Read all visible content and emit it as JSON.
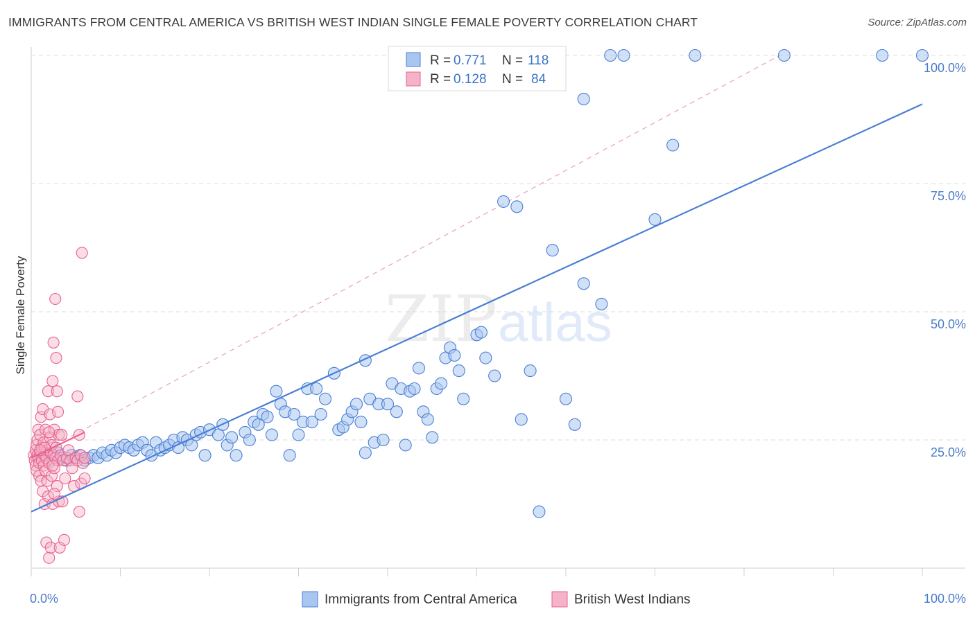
{
  "title": "IMMIGRANTS FROM CENTRAL AMERICA VS BRITISH WEST INDIAN SINGLE FEMALE POVERTY CORRELATION CHART",
  "source": "Source: ZipAtlas.com",
  "watermark": {
    "zip": "ZIP",
    "atlas": "atlas"
  },
  "colors": {
    "blue": "#4a7fd4",
    "blue_fill": "#a9c6f0",
    "pink": "#e8628e",
    "pink_fill": "#f4b3c8",
    "grid": "#dcdcdc",
    "tick": "#4a7cc9"
  },
  "legend": {
    "r_label": "R =",
    "n_label": "N =",
    "entries": [
      {
        "r": "0.771",
        "n": "118"
      },
      {
        "r": "0.128",
        "n": "84"
      }
    ]
  },
  "bottom_legend": [
    "Immigrants from Central America",
    "British West Indians"
  ],
  "chart_data": {
    "type": "scatter",
    "ylabel": "Single Female Poverty",
    "xlim": [
      0,
      1
    ],
    "ylim": [
      0,
      1
    ],
    "x_tick_labels": [
      "0.0%",
      "100.0%"
    ],
    "y_tick_labels": [
      "25.0%",
      "50.0%",
      "75.0%",
      "100.0%"
    ],
    "y_ticks": [
      0.25,
      0.5,
      0.75,
      1.0
    ],
    "grid": true,
    "series": [
      {
        "name": "Immigrants from Central America",
        "color": "#4a7fd4",
        "trend": {
          "x0": 0.0,
          "y0": 0.11,
          "x1": 1.0,
          "y1": 0.905
        },
        "points": [
          [
            0.01,
            0.22
          ],
          [
            0.015,
            0.215
          ],
          [
            0.02,
            0.21
          ],
          [
            0.025,
            0.22
          ],
          [
            0.03,
            0.225
          ],
          [
            0.035,
            0.215
          ],
          [
            0.04,
            0.21
          ],
          [
            0.045,
            0.22
          ],
          [
            0.05,
            0.215
          ],
          [
            0.055,
            0.22
          ],
          [
            0.06,
            0.21
          ],
          [
            0.065,
            0.215
          ],
          [
            0.07,
            0.22
          ],
          [
            0.075,
            0.215
          ],
          [
            0.08,
            0.225
          ],
          [
            0.085,
            0.22
          ],
          [
            0.09,
            0.23
          ],
          [
            0.095,
            0.225
          ],
          [
            0.1,
            0.235
          ],
          [
            0.105,
            0.24
          ],
          [
            0.11,
            0.235
          ],
          [
            0.115,
            0.23
          ],
          [
            0.12,
            0.24
          ],
          [
            0.125,
            0.245
          ],
          [
            0.13,
            0.23
          ],
          [
            0.135,
            0.22
          ],
          [
            0.14,
            0.245
          ],
          [
            0.145,
            0.23
          ],
          [
            0.15,
            0.235
          ],
          [
            0.155,
            0.24
          ],
          [
            0.16,
            0.25
          ],
          [
            0.165,
            0.235
          ],
          [
            0.17,
            0.255
          ],
          [
            0.175,
            0.25
          ],
          [
            0.18,
            0.24
          ],
          [
            0.185,
            0.26
          ],
          [
            0.19,
            0.265
          ],
          [
            0.195,
            0.22
          ],
          [
            0.2,
            0.27
          ],
          [
            0.21,
            0.26
          ],
          [
            0.215,
            0.28
          ],
          [
            0.22,
            0.24
          ],
          [
            0.225,
            0.255
          ],
          [
            0.23,
            0.22
          ],
          [
            0.24,
            0.265
          ],
          [
            0.245,
            0.25
          ],
          [
            0.25,
            0.285
          ],
          [
            0.255,
            0.28
          ],
          [
            0.26,
            0.3
          ],
          [
            0.265,
            0.295
          ],
          [
            0.27,
            0.26
          ],
          [
            0.275,
            0.345
          ],
          [
            0.28,
            0.32
          ],
          [
            0.285,
            0.305
          ],
          [
            0.29,
            0.22
          ],
          [
            0.295,
            0.3
          ],
          [
            0.3,
            0.26
          ],
          [
            0.305,
            0.285
          ],
          [
            0.31,
            0.35
          ],
          [
            0.315,
            0.285
          ],
          [
            0.32,
            0.35
          ],
          [
            0.325,
            0.3
          ],
          [
            0.33,
            0.33
          ],
          [
            0.34,
            0.38
          ],
          [
            0.345,
            0.27
          ],
          [
            0.35,
            0.275
          ],
          [
            0.355,
            0.29
          ],
          [
            0.36,
            0.305
          ],
          [
            0.365,
            0.32
          ],
          [
            0.37,
            0.285
          ],
          [
            0.375,
            0.405
          ],
          [
            0.38,
            0.33
          ],
          [
            0.385,
            0.245
          ],
          [
            0.39,
            0.32
          ],
          [
            0.395,
            0.25
          ],
          [
            0.4,
            0.32
          ],
          [
            0.405,
            0.36
          ],
          [
            0.41,
            0.305
          ],
          [
            0.415,
            0.35
          ],
          [
            0.42,
            0.24
          ],
          [
            0.425,
            0.345
          ],
          [
            0.43,
            0.35
          ],
          [
            0.435,
            0.39
          ],
          [
            0.44,
            0.305
          ],
          [
            0.445,
            0.29
          ],
          [
            0.45,
            0.255
          ],
          [
            0.455,
            0.35
          ],
          [
            0.46,
            0.36
          ],
          [
            0.465,
            0.41
          ],
          [
            0.47,
            0.43
          ],
          [
            0.475,
            0.415
          ],
          [
            0.48,
            0.385
          ],
          [
            0.485,
            0.33
          ],
          [
            0.5,
            0.455
          ],
          [
            0.505,
            0.46
          ],
          [
            0.51,
            0.41
          ],
          [
            0.52,
            0.375
          ],
          [
            0.53,
            0.715
          ],
          [
            0.545,
            0.705
          ],
          [
            0.55,
            0.29
          ],
          [
            0.56,
            0.385
          ],
          [
            0.57,
            0.11
          ],
          [
            0.58,
            1.0
          ],
          [
            0.585,
            0.62
          ],
          [
            0.6,
            0.33
          ],
          [
            0.61,
            0.28
          ],
          [
            0.62,
            0.555
          ],
          [
            0.62,
            0.915
          ],
          [
            0.64,
            0.515
          ],
          [
            0.65,
            1.0
          ],
          [
            0.665,
            1.0
          ],
          [
            0.7,
            0.68
          ],
          [
            0.72,
            0.825
          ],
          [
            0.745,
            1.0
          ],
          [
            0.845,
            1.0
          ],
          [
            0.955,
            1.0
          ],
          [
            1.0,
            1.0
          ],
          [
            0.375,
            0.225
          ]
        ]
      },
      {
        "name": "British West Indians",
        "color": "#e8628e",
        "trend": {
          "x0": 0.0,
          "y0": 0.215,
          "x1": 0.06,
          "y1": 0.265
        },
        "dash": {
          "x0": 0.0,
          "y0": 0.215,
          "x1": 0.84,
          "y1": 1.0
        },
        "points": [
          [
            0.003,
            0.22
          ],
          [
            0.004,
            0.21
          ],
          [
            0.005,
            0.23
          ],
          [
            0.005,
            0.2
          ],
          [
            0.006,
            0.24
          ],
          [
            0.006,
            0.19
          ],
          [
            0.007,
            0.25
          ],
          [
            0.007,
            0.22
          ],
          [
            0.008,
            0.215
          ],
          [
            0.008,
            0.27
          ],
          [
            0.009,
            0.18
          ],
          [
            0.009,
            0.205
          ],
          [
            0.01,
            0.26
          ],
          [
            0.01,
            0.225
          ],
          [
            0.011,
            0.295
          ],
          [
            0.011,
            0.17
          ],
          [
            0.012,
            0.21
          ],
          [
            0.012,
            0.235
          ],
          [
            0.013,
            0.31
          ],
          [
            0.013,
            0.15
          ],
          [
            0.014,
            0.2
          ],
          [
            0.014,
            0.245
          ],
          [
            0.015,
            0.125
          ],
          [
            0.015,
            0.22
          ],
          [
            0.016,
            0.27
          ],
          [
            0.016,
            0.19
          ],
          [
            0.017,
            0.215
          ],
          [
            0.017,
            0.05
          ],
          [
            0.018,
            0.23
          ],
          [
            0.018,
            0.17
          ],
          [
            0.019,
            0.345
          ],
          [
            0.019,
            0.14
          ],
          [
            0.02,
            0.205
          ],
          [
            0.02,
            0.02
          ],
          [
            0.021,
            0.255
          ],
          [
            0.021,
            0.3
          ],
          [
            0.022,
            0.225
          ],
          [
            0.022,
            0.04
          ],
          [
            0.023,
            0.18
          ],
          [
            0.023,
            0.24
          ],
          [
            0.024,
            0.365
          ],
          [
            0.024,
            0.125
          ],
          [
            0.025,
            0.22
          ],
          [
            0.025,
            0.44
          ],
          [
            0.026,
            0.27
          ],
          [
            0.026,
            0.195
          ],
          [
            0.027,
            0.215
          ],
          [
            0.027,
            0.525
          ],
          [
            0.028,
            0.41
          ],
          [
            0.028,
            0.235
          ],
          [
            0.029,
            0.345
          ],
          [
            0.029,
            0.16
          ],
          [
            0.03,
            0.21
          ],
          [
            0.03,
            0.305
          ],
          [
            0.031,
            0.13
          ],
          [
            0.031,
            0.26
          ],
          [
            0.032,
            0.04
          ],
          [
            0.033,
            0.22
          ],
          [
            0.034,
            0.26
          ],
          [
            0.035,
            0.13
          ],
          [
            0.036,
            0.21
          ],
          [
            0.037,
            0.055
          ],
          [
            0.038,
            0.175
          ],
          [
            0.04,
            0.215
          ],
          [
            0.042,
            0.23
          ],
          [
            0.044,
            0.21
          ],
          [
            0.046,
            0.195
          ],
          [
            0.048,
            0.16
          ],
          [
            0.05,
            0.215
          ],
          [
            0.052,
            0.21
          ],
          [
            0.054,
            0.11
          ],
          [
            0.056,
            0.22
          ],
          [
            0.058,
            0.205
          ],
          [
            0.06,
            0.215
          ],
          [
            0.052,
            0.335
          ],
          [
            0.054,
            0.26
          ],
          [
            0.056,
            0.165
          ],
          [
            0.06,
            0.175
          ],
          [
            0.057,
            0.615
          ],
          [
            0.02,
            0.265
          ],
          [
            0.015,
            0.235
          ],
          [
            0.01,
            0.23
          ],
          [
            0.024,
            0.2
          ],
          [
            0.026,
            0.145
          ]
        ]
      }
    ]
  }
}
